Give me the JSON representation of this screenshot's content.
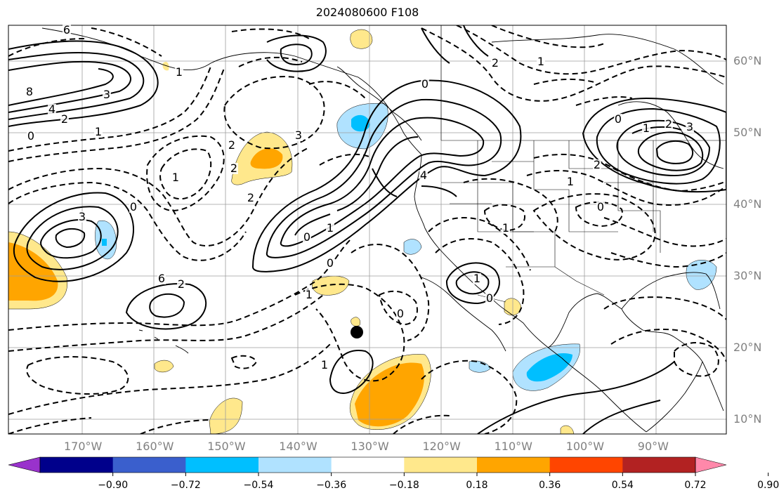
{
  "title": "2024080600 F108",
  "map": {
    "region": "North Pacific / North America",
    "lon_range": [
      -178,
      -82
    ],
    "lat_range": [
      8,
      65
    ],
    "marker": {
      "lon": -132,
      "lat": 22,
      "icon": "storm-center-dot"
    }
  },
  "axes": {
    "lon_ticks": [
      {
        "lon": -170,
        "label": "170°W"
      },
      {
        "lon": -160,
        "label": "160°W"
      },
      {
        "lon": -150,
        "label": "150°W"
      },
      {
        "lon": -140,
        "label": "140°W"
      },
      {
        "lon": -130,
        "label": "130°W"
      },
      {
        "lon": -120,
        "label": "120°W"
      },
      {
        "lon": -110,
        "label": "110°W"
      },
      {
        "lon": -100,
        "label": "100°W"
      },
      {
        "lon": -90,
        "label": "90°W"
      }
    ],
    "lat_ticks": [
      {
        "lat": 60,
        "label": "60°N"
      },
      {
        "lat": 50,
        "label": "50°N"
      },
      {
        "lat": 40,
        "label": "40°N"
      },
      {
        "lat": 30,
        "label": "30°N"
      },
      {
        "lat": 20,
        "label": "20°N"
      },
      {
        "lat": 10,
        "label": "10°N"
      }
    ]
  },
  "colorbar": {
    "colors": [
      "#9932cc",
      "#00008b",
      "#3a5fcd",
      "#00bfff",
      "#b0e2ff",
      "#ffffff",
      "#ffe88c",
      "#ffa500",
      "#ff4500",
      "#b22222",
      "#ff88aa"
    ],
    "ticks": [
      {
        "value": -0.9,
        "label": "−0.90"
      },
      {
        "value": -0.72,
        "label": "−0.72"
      },
      {
        "value": -0.54,
        "label": "−0.54"
      },
      {
        "value": -0.36,
        "label": "−0.36"
      },
      {
        "value": -0.18,
        "label": "−0.18"
      },
      {
        "value": 0.18,
        "label": "0.18"
      },
      {
        "value": 0.36,
        "label": "0.36"
      },
      {
        "value": 0.54,
        "label": "0.54"
      },
      {
        "value": 0.72,
        "label": "0.72"
      },
      {
        "value": 0.9,
        "label": "0.90"
      }
    ]
  },
  "contour_labels": [
    "6",
    "8",
    "4",
    "3",
    "2",
    "1",
    "0",
    "1",
    "2",
    "3",
    "2",
    "1",
    "2",
    "3",
    "0",
    "0",
    "1",
    "0",
    "1",
    "2",
    "6",
    "4",
    "3",
    "2",
    "1",
    "0",
    "2",
    "1",
    "0",
    "1",
    "2",
    "1",
    "0",
    "1",
    "0",
    "1",
    "0"
  ]
}
